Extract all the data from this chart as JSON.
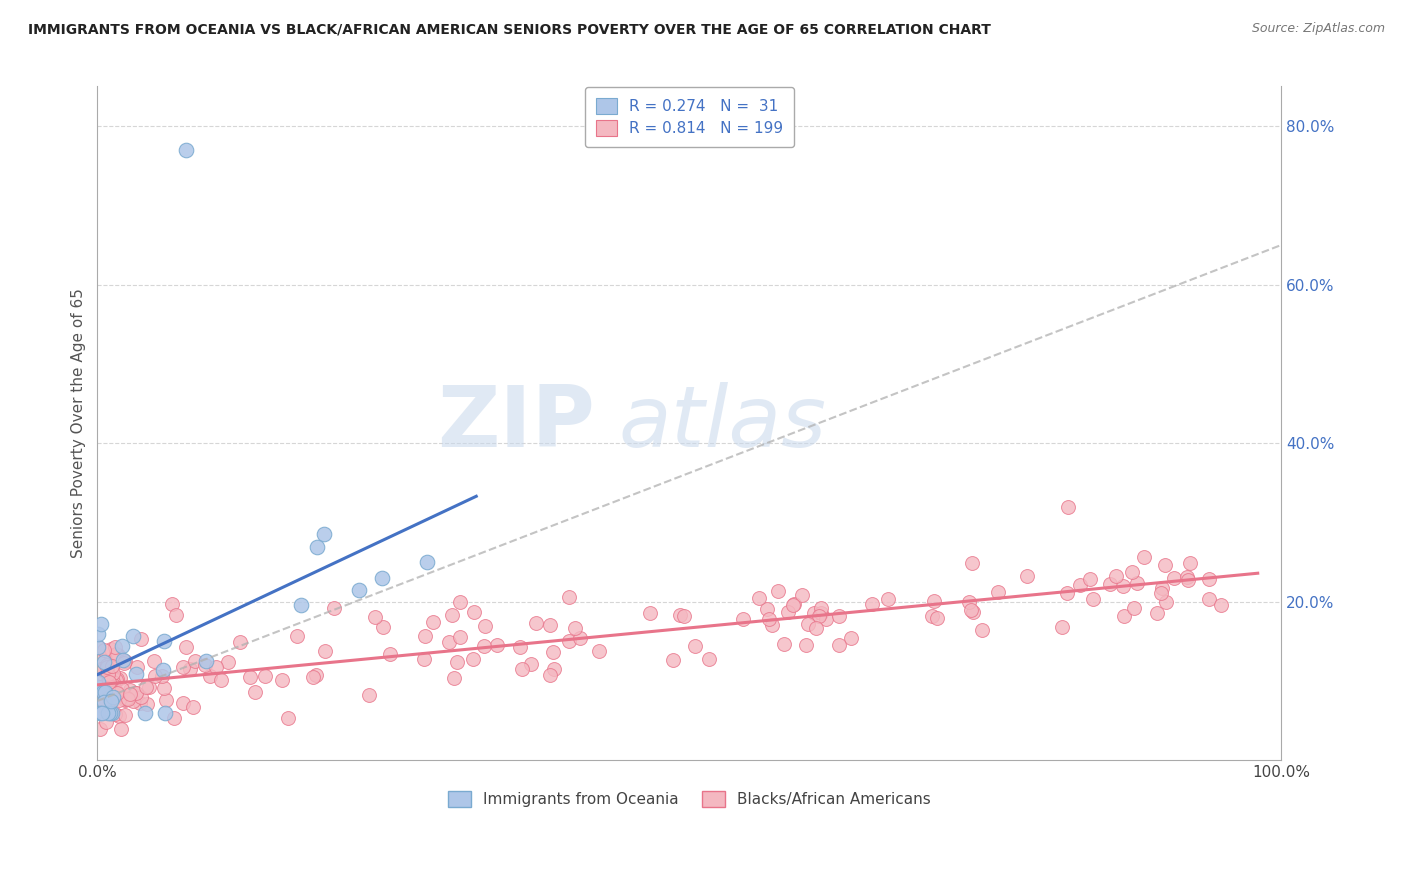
{
  "title": "IMMIGRANTS FROM OCEANIA VS BLACK/AFRICAN AMERICAN SENIORS POVERTY OVER THE AGE OF 65 CORRELATION CHART",
  "source": "Source: ZipAtlas.com",
  "ylabel": "Seniors Poverty Over the Age of 65",
  "legend_top": [
    {
      "R": 0.274,
      "N": 31,
      "color": "#aec6e8",
      "edge": "#7aaad0"
    },
    {
      "R": 0.814,
      "N": 199,
      "color": "#f4b8c1",
      "edge": "#e8748a"
    }
  ],
  "legend_bottom": [
    "Immigrants from Oceania",
    "Blacks/African Americans"
  ],
  "xlim": [
    0.0,
    1.0
  ],
  "ylim": [
    0.0,
    0.85
  ],
  "ytick_positions": [
    0.2,
    0.4,
    0.6,
    0.8
  ],
  "ytick_labels": [
    "20.0%",
    "40.0%",
    "60.0%",
    "80.0%"
  ],
  "xtick_positions": [
    0.0,
    1.0
  ],
  "xtick_labels": [
    "0.0%",
    "100.0%"
  ],
  "background_color": "#ffffff",
  "grid_color": "#cccccc",
  "watermark_zip": "ZIP",
  "watermark_atlas": "atlas",
  "blue_line_color": "#4472c4",
  "pink_line_color": "#e8748a",
  "dashed_line_color": "#b0b0b0",
  "blue_scatter_color": "#aec6e8",
  "pink_scatter_color": "#f4b8c1",
  "blue_scatter_edge": "#7aaad0",
  "pink_scatter_edge": "#e8748a",
  "tick_color": "#4472c4",
  "ylabel_color": "#555555",
  "R_oceania": 0.274,
  "N_oceania": 31,
  "R_blacks": 0.814,
  "N_blacks": 199
}
